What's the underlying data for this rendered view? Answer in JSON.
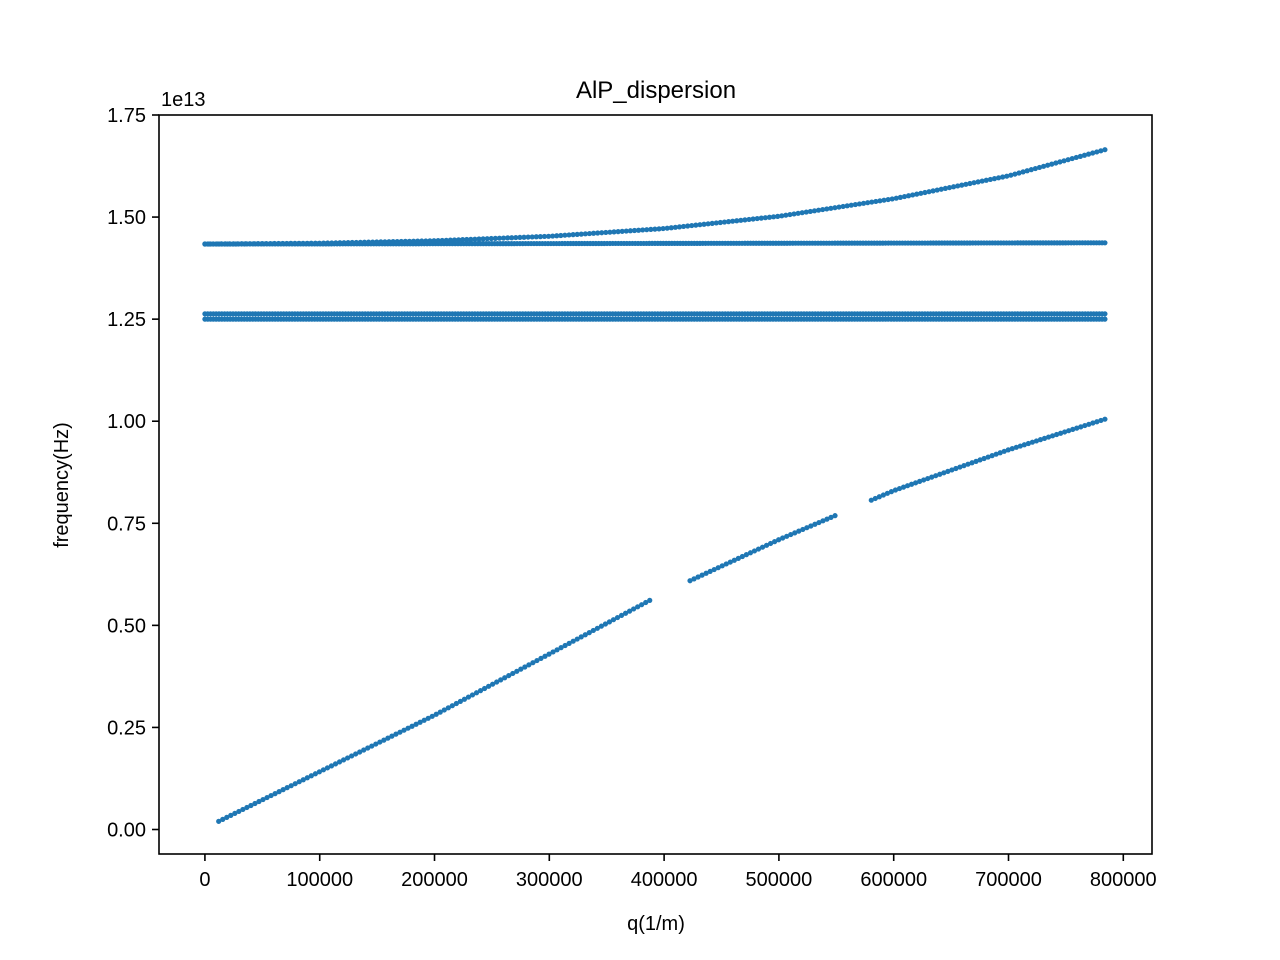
{
  "chart_data": {
    "type": "scatter",
    "title": "AlP_dispersion",
    "xlabel": "q(1/m)",
    "ylabel": "frequency(Hz)",
    "y_offset_label": "1e13",
    "y_scale": 10000000000000.0,
    "xlim": [
      -40000,
      825000
    ],
    "ylim": [
      -0.06,
      1.75
    ],
    "x_ticks": [
      0,
      100000,
      200000,
      300000,
      400000,
      500000,
      600000,
      700000,
      800000
    ],
    "x_tick_labels": [
      "0",
      "100000",
      "200000",
      "300000",
      "400000",
      "500000",
      "600000",
      "700000",
      "800000"
    ],
    "y_ticks": [
      0.0,
      0.25,
      0.5,
      0.75,
      1.0,
      1.25,
      1.5,
      1.75
    ],
    "y_tick_labels": [
      "0.00",
      "0.25",
      "0.50",
      "0.75",
      "1.00",
      "1.25",
      "1.50",
      "1.75"
    ],
    "grid": false,
    "legend": "none",
    "marker_color": "#1f77b4",
    "series": [
      {
        "branch": "optical-upper-flat",
        "q_range": [
          0,
          784000
        ],
        "points": [
          [
            0,
            1.434
          ],
          [
            784000,
            1.437
          ]
        ]
      },
      {
        "branch": "optical-rising",
        "points": [
          [
            0,
            1.434
          ],
          [
            100000,
            1.436
          ],
          [
            200000,
            1.442
          ],
          [
            300000,
            1.453
          ],
          [
            400000,
            1.472
          ],
          [
            500000,
            1.502
          ],
          [
            600000,
            1.545
          ],
          [
            700000,
            1.601
          ],
          [
            784000,
            1.665
          ]
        ]
      },
      {
        "branch": "optical-lower-upper",
        "q_range": [
          0,
          784000
        ],
        "points": [
          [
            0,
            1.263
          ],
          [
            784000,
            1.263
          ]
        ]
      },
      {
        "branch": "optical-lower-lower",
        "q_range": [
          0,
          784000
        ],
        "points": [
          [
            0,
            1.25
          ],
          [
            784000,
            1.25
          ]
        ]
      },
      {
        "branch": "acoustic",
        "points": [
          [
            12000,
            0.02
          ],
          [
            200000,
            0.28
          ],
          [
            300000,
            0.43
          ],
          [
            400000,
            0.58
          ],
          [
            500000,
            0.71
          ],
          [
            600000,
            0.83
          ],
          [
            700000,
            0.93
          ],
          [
            784000,
            1.005
          ]
        ],
        "gaps_q": [
          [
            390000,
            422000
          ],
          [
            552000,
            578000
          ]
        ]
      }
    ]
  }
}
